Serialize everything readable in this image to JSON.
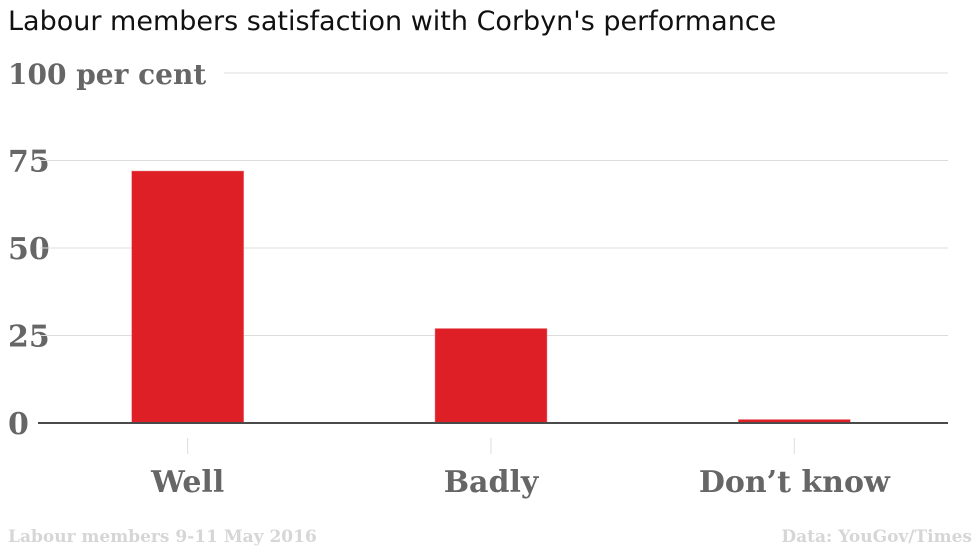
{
  "chart_data": {
    "type": "bar",
    "title": "Labour members satisfaction with Corbyn's performance",
    "categories": [
      "Well",
      "Badly",
      "Don’t know"
    ],
    "values": [
      72,
      27,
      1
    ],
    "ylim": [
      0,
      100
    ],
    "yticks": [
      0,
      25,
      50,
      75,
      100
    ],
    "ytick_labels": [
      "0",
      "25",
      "50",
      "75",
      "100 per cent"
    ],
    "xlabel": "",
    "ylabel": "",
    "grid": true,
    "bar_color": "#de1f26",
    "note": "Labour members 9-11 May 2016",
    "source": "Data: YouGov/Times"
  }
}
